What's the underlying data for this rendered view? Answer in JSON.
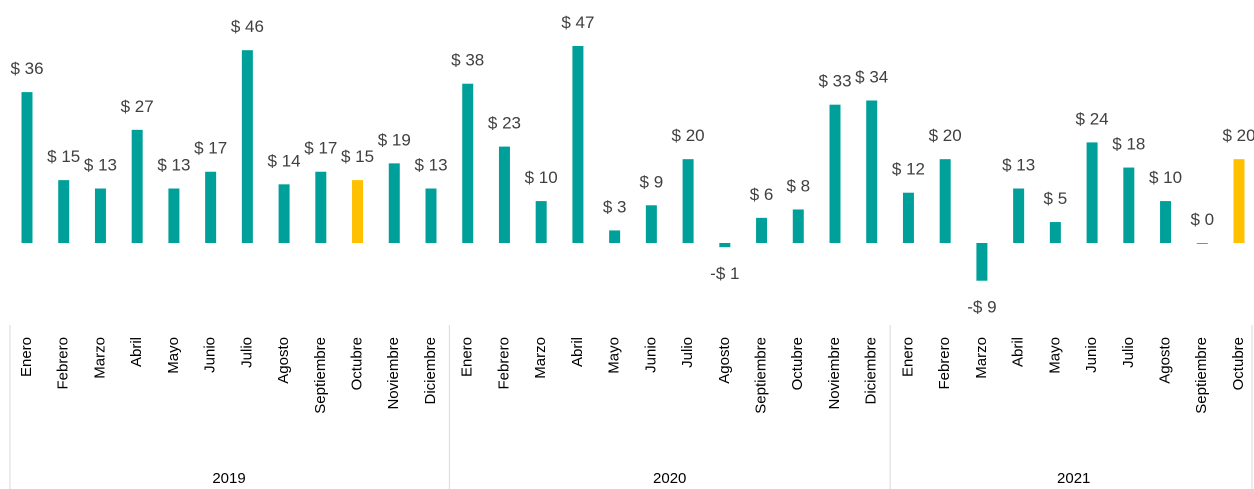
{
  "chart_data": {
    "type": "bar",
    "groups": [
      {
        "name": "2019",
        "categories": [
          "Enero",
          "Febrero",
          "Marzo",
          "Abril",
          "Mayo",
          "Junio",
          "Julio",
          "Agosto",
          "Septiembre",
          "Octubre",
          "Noviembre",
          "Diciembre"
        ],
        "values": [
          36,
          15,
          13,
          27,
          13,
          17,
          46,
          14,
          17,
          15,
          19,
          13
        ],
        "value_labels": [
          "$ 36",
          "$ 15",
          "$ 13",
          "$ 27",
          "$ 13",
          "$ 17",
          "$ 46",
          "$ 14",
          "$ 17",
          "$ 15",
          "$ 19",
          "$ 13"
        ],
        "colors": [
          "#00a09a",
          "#00a09a",
          "#00a09a",
          "#00a09a",
          "#00a09a",
          "#00a09a",
          "#00a09a",
          "#00a09a",
          "#00a09a",
          "#ffc000",
          "#00a09a",
          "#00a09a"
        ]
      },
      {
        "name": "2020",
        "categories": [
          "Enero",
          "Febrero",
          "Marzo",
          "Abril",
          "Mayo",
          "Junio",
          "Julio",
          "Agosto",
          "Septiembre",
          "Octubre",
          "Noviembre",
          "Diciembre"
        ],
        "values": [
          38,
          23,
          10,
          47,
          3,
          9,
          20,
          -1,
          6,
          8,
          33,
          34
        ],
        "value_labels": [
          "$ 38",
          "$ 23",
          "$ 10",
          "$ 47",
          "$ 3",
          "$ 9",
          "$ 20",
          "-$ 1",
          "$ 6",
          "$ 8",
          "$ 33",
          "$ 34"
        ],
        "colors": [
          "#00a09a",
          "#00a09a",
          "#00a09a",
          "#00a09a",
          "#00a09a",
          "#00a09a",
          "#00a09a",
          "#00a09a",
          "#00a09a",
          "#00a09a",
          "#00a09a",
          "#00a09a"
        ]
      },
      {
        "name": "2021",
        "categories": [
          "Enero",
          "Febrero",
          "Marzo",
          "Abril",
          "Mayo",
          "Junio",
          "Julio",
          "Agosto",
          "Septiembre",
          "Octubre"
        ],
        "values": [
          12,
          20,
          -9,
          13,
          5,
          24,
          18,
          10,
          0,
          20
        ],
        "value_labels": [
          "$ 12",
          "$ 20",
          "-$ 9",
          "$ 13",
          "$ 5",
          "$ 24",
          "$ 18",
          "$ 10",
          "$ 0",
          "$ 20"
        ],
        "colors": [
          "#00a09a",
          "#00a09a",
          "#00a09a",
          "#00a09a",
          "#00a09a",
          "#00a09a",
          "#00a09a",
          "#00a09a",
          "#00a09a",
          "#ffc000"
        ]
      }
    ]
  }
}
